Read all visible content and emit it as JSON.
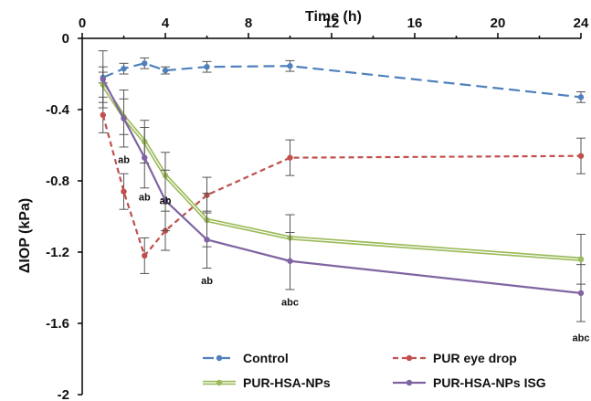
{
  "chart_data": {
    "type": "line",
    "title": "",
    "xlabel": "Time (h)",
    "ylabel": "ΔIOP (kPa)",
    "xlim": [
      0,
      24
    ],
    "ylim": [
      -2,
      0
    ],
    "x_ticks": [
      "0",
      "4",
      "8",
      "12",
      "16",
      "20",
      "24"
    ],
    "y_ticks": [
      "0",
      "-0.4",
      "-0.8",
      "-1.2",
      "-1.6",
      "-2"
    ],
    "x_axis_position": "top",
    "grid": false,
    "legend_position": "bottom",
    "series": [
      {
        "name": "Control",
        "color": "#4f81bd",
        "style": "long-dash",
        "x": [
          1,
          2,
          3,
          4,
          6,
          10,
          24
        ],
        "y": [
          -0.22,
          -0.17,
          -0.14,
          -0.18,
          -0.16,
          -0.155,
          -0.33
        ],
        "err": [
          0.03,
          0.03,
          0.03,
          0.02,
          0.03,
          0.03,
          0.03
        ]
      },
      {
        "name": "PUR eye drop",
        "color": "#c0504d",
        "style": "dash",
        "x": [
          1,
          2,
          3,
          4,
          6,
          10,
          24
        ],
        "y": [
          -0.43,
          -0.86,
          -1.22,
          -1.08,
          -0.88,
          -0.67,
          -0.66
        ],
        "err": [
          0.1,
          0.1,
          0.1,
          0.11,
          0.1,
          0.1,
          0.1
        ]
      },
      {
        "name": "PUR-HSA-NPs",
        "color": "#9bbb59",
        "style": "double",
        "x": [
          1,
          2,
          3,
          4,
          6,
          10,
          24
        ],
        "y": [
          -0.26,
          -0.44,
          -0.58,
          -0.77,
          -1.02,
          -1.12,
          -1.24
        ],
        "err": [
          0.1,
          0.1,
          0.12,
          0.13,
          0.15,
          0.13,
          0.14
        ]
      },
      {
        "name": "PUR-HSA-NPs ISG",
        "color": "#8064a2",
        "style": "solid",
        "x": [
          1,
          2,
          3,
          4,
          6,
          10,
          24
        ],
        "y": [
          -0.23,
          -0.45,
          -0.67,
          -0.91,
          -1.13,
          -1.25,
          -1.43
        ],
        "err": [
          0.16,
          0.16,
          0.17,
          0.17,
          0.16,
          0.16,
          0.16
        ]
      }
    ],
    "annotations": [
      {
        "x": 2,
        "y": -0.68,
        "text": "ab"
      },
      {
        "x": 3,
        "y": -0.89,
        "text": "ab"
      },
      {
        "x": 4,
        "y": -0.91,
        "text": "ab"
      },
      {
        "x": 6,
        "y": -1.36,
        "text": "ab"
      },
      {
        "x": 10,
        "y": -1.48,
        "text": "abc"
      },
      {
        "x": 24,
        "y": -1.68,
        "text": "abc"
      }
    ]
  }
}
